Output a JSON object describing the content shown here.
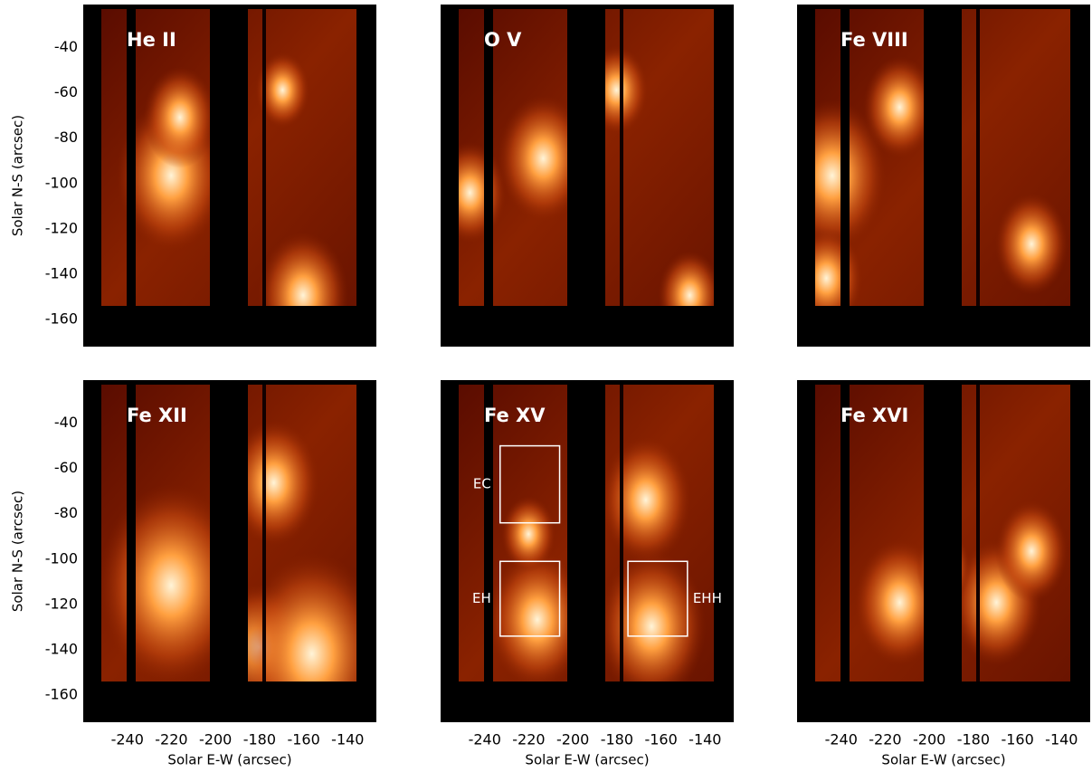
{
  "chart_data": [
    {
      "type": "image",
      "title": "He II",
      "xlim": [
        -260,
        -127
      ],
      "ylim": [
        -172,
        -21
      ],
      "yticks": [
        -40,
        -60,
        -80,
        -100,
        -120,
        -140,
        -160
      ],
      "ylabel": "Solar N-S (arcsec)"
    },
    {
      "type": "image",
      "title": "O V",
      "xlim": [
        -260,
        -127
      ],
      "ylim": [
        -172,
        -21
      ]
    },
    {
      "type": "image",
      "title": "Fe VIII",
      "xlim": [
        -260,
        -127
      ],
      "ylim": [
        -172,
        -21
      ]
    },
    {
      "type": "image",
      "title": "Fe XII",
      "xlim": [
        -260,
        -127
      ],
      "ylim": [
        -172,
        -21
      ],
      "yticks": [
        -40,
        -60,
        -80,
        -100,
        -120,
        -140,
        -160
      ],
      "ylabel": "Solar N-S (arcsec)",
      "xticks": [
        -240,
        -220,
        -200,
        -180,
        -160,
        -140
      ],
      "xlabel": "Solar E-W (arcsec)"
    },
    {
      "type": "image",
      "title": "Fe XV",
      "xlim": [
        -260,
        -127
      ],
      "ylim": [
        -172,
        -21
      ],
      "xticks": [
        -240,
        -220,
        -200,
        -180,
        -160,
        -140
      ],
      "xlabel": "Solar E-W (arcsec)",
      "regions": [
        {
          "label": "EC",
          "x": [
            -233,
            -206
          ],
          "y": [
            -50,
            -84
          ]
        },
        {
          "label": "EH",
          "x": [
            -233,
            -206
          ],
          "y": [
            -101,
            -134
          ]
        },
        {
          "label": "EHH",
          "x": [
            -175,
            -148
          ],
          "y": [
            -101,
            -134
          ]
        }
      ]
    },
    {
      "type": "image",
      "title": "Fe XVI",
      "xlim": [
        -260,
        -127
      ],
      "ylim": [
        -172,
        -21
      ],
      "xticks": [
        -240,
        -220,
        -200,
        -180,
        -160,
        -140
      ],
      "xlabel": "Solar E-W (arcsec)"
    }
  ]
}
